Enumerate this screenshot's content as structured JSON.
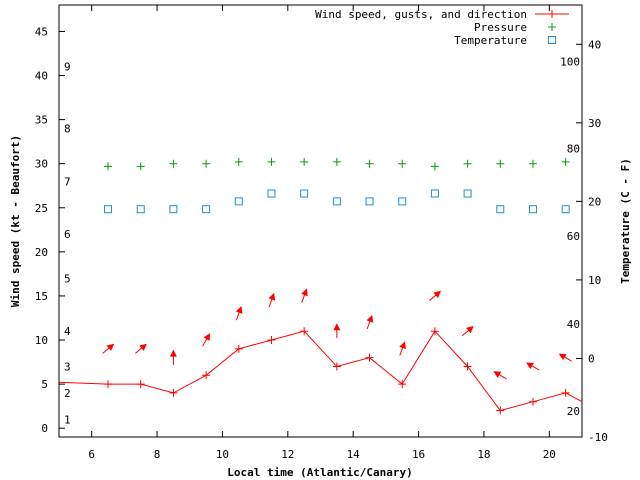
{
  "chart_data": {
    "type": "line",
    "xlabel": "Local time (Atlantic/Canary)",
    "ylabel": "Wind speed (kt - Beaufort)",
    "y2label": "Temperature (C - F)",
    "xlim": [
      5,
      21
    ],
    "ylim": [
      -1,
      48
    ],
    "y2lim": [
      -10,
      45
    ],
    "x_ticks": [
      6,
      8,
      10,
      12,
      14,
      16,
      18,
      20
    ],
    "y_ticks": [
      0,
      5,
      10,
      15,
      20,
      25,
      30,
      35,
      40,
      45
    ],
    "y2_ticks": [
      -10,
      0,
      10,
      20,
      30,
      40
    ],
    "beaufort_labels": [
      {
        "text": "1",
        "kt": 1
      },
      {
        "text": "2",
        "kt": 4
      },
      {
        "text": "3",
        "kt": 7
      },
      {
        "text": "4",
        "kt": 11
      },
      {
        "text": "5",
        "kt": 17
      },
      {
        "text": "6",
        "kt": 22
      },
      {
        "text": "7",
        "kt": 28
      },
      {
        "text": "8",
        "kt": 34
      },
      {
        "text": "9",
        "kt": 41
      }
    ],
    "fahrenheit_labels": [
      {
        "text": "20",
        "c": -6.7
      },
      {
        "text": "40",
        "c": 4.4
      },
      {
        "text": "60",
        "c": 15.6
      },
      {
        "text": "80",
        "c": 26.7
      },
      {
        "text": "100",
        "c": 37.8
      }
    ],
    "legend": [
      "Wind speed, gusts, and direction",
      "Pressure",
      "Temperature"
    ],
    "legend_position": "top-right",
    "series": [
      {
        "name": "Wind speed, gusts, and direction",
        "color": "#ff0000",
        "axis": "y",
        "x": [
          5,
          6.5,
          7.5,
          8.5,
          9.5,
          10.5,
          11.5,
          12.5,
          13.5,
          14.5,
          15.5,
          16.5,
          17.5,
          18.5,
          19.5,
          20.5,
          21
        ],
        "values": [
          5.2,
          5.0,
          5.0,
          4.0,
          6.0,
          9.0,
          10.0,
          11.0,
          7.0,
          8.0,
          5.0,
          11.0,
          7.0,
          2.0,
          3.0,
          4.0,
          3.0
        ]
      },
      {
        "name": "Pressure",
        "color": "#00a000",
        "axis": "y",
        "x": [
          6.5,
          7.5,
          8.5,
          9.5,
          10.5,
          11.5,
          12.5,
          13.5,
          14.5,
          15.5,
          16.5,
          17.5,
          18.5,
          19.5,
          20.5
        ],
        "values": [
          29.7,
          29.7,
          30.0,
          30.0,
          30.2,
          30.2,
          30.2,
          30.2,
          30.0,
          30.0,
          29.7,
          30.0,
          30.0,
          30.0,
          30.2
        ]
      },
      {
        "name": "Temperature",
        "color": "#1e90c8",
        "axis": "y2",
        "x": [
          6.5,
          7.5,
          8.5,
          9.5,
          10.5,
          11.5,
          12.5,
          13.5,
          14.5,
          15.5,
          16.5,
          17.5,
          18.5,
          19.5,
          20.5
        ],
        "values": [
          19,
          19,
          19,
          19,
          20,
          21,
          21,
          20,
          20,
          20,
          21,
          21,
          19,
          19,
          19
        ]
      }
    ],
    "wind_direction": {
      "color": "#ff0000",
      "note": "arrow heading in degrees, 0 = up, clockwise",
      "x": [
        6.5,
        7.5,
        8.5,
        9.5,
        10.5,
        11.5,
        12.5,
        13.5,
        14.5,
        15.5,
        16.5,
        17.5,
        18.5,
        19.5,
        20.5
      ],
      "y": [
        9,
        9,
        8,
        10,
        13,
        14.5,
        15,
        11,
        12,
        9,
        15,
        11,
        6,
        7,
        8
      ],
      "heading": [
        50,
        50,
        0,
        30,
        20,
        20,
        20,
        0,
        20,
        20,
        50,
        50,
        300,
        300,
        300
      ]
    }
  }
}
